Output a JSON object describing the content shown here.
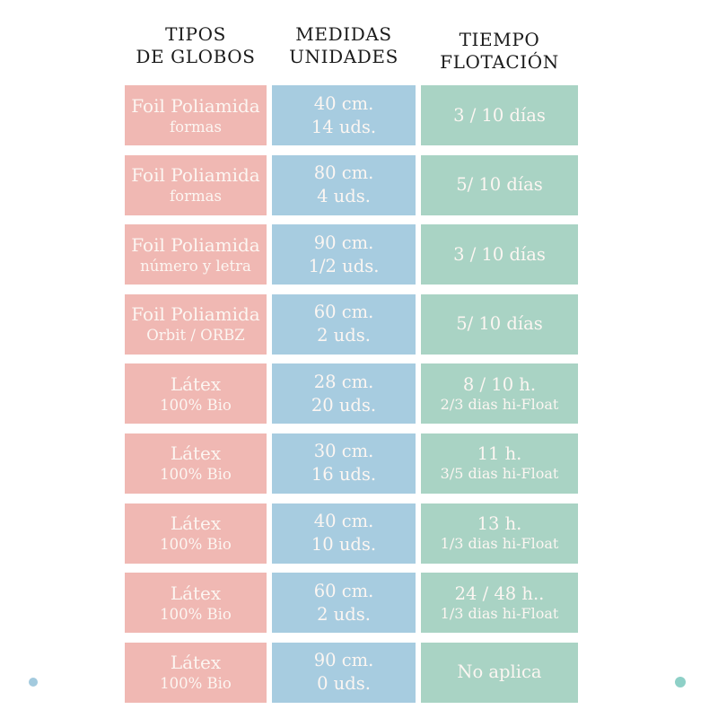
{
  "headers": {
    "tipos": [
      "TIPOS",
      "DE GLOBOS"
    ],
    "medidas": [
      "MEDIDAS",
      "UNIDADES"
    ],
    "tiempo": [
      "TIEMPO",
      "FLOTACIÓN"
    ]
  },
  "table": {
    "rows": [
      {
        "tipo": [
          "Foil Poliamida",
          "formas"
        ],
        "medidas": [
          "40 cm.",
          "14 uds."
        ],
        "tiempo": [
          "3 / 10 días"
        ]
      },
      {
        "tipo": [
          "Foil Poliamida",
          "formas"
        ],
        "medidas": [
          "80 cm.",
          "4 uds."
        ],
        "tiempo": [
          "5/ 10 días"
        ]
      },
      {
        "tipo": [
          "Foil Poliamida",
          "número y letra"
        ],
        "medidas": [
          "90 cm.",
          "1/2 uds."
        ],
        "tiempo": [
          "3 / 10 días"
        ]
      },
      {
        "tipo": [
          "Foil Poliamida",
          "Orbit / ORBZ"
        ],
        "medidas": [
          "60 cm.",
          "2 uds."
        ],
        "tiempo": [
          "5/ 10 días"
        ]
      },
      {
        "tipo": [
          "Látex",
          "100% Bio"
        ],
        "medidas": [
          "28 cm.",
          "20 uds."
        ],
        "tiempo": [
          "8 / 10 h.",
          "2/3 dias hi-Float"
        ]
      },
      {
        "tipo": [
          "Látex",
          "100% Bio"
        ],
        "medidas": [
          "30 cm.",
          "16 uds."
        ],
        "tiempo": [
          "11 h.",
          "3/5 dias hi-Float"
        ]
      },
      {
        "tipo": [
          "Látex",
          "100% Bio"
        ],
        "medidas": [
          "40 cm.",
          "10 uds."
        ],
        "tiempo": [
          "13 h.",
          "1/3 dias hi-Float"
        ]
      },
      {
        "tipo": [
          "Látex",
          "100% Bio"
        ],
        "medidas": [
          "60 cm.",
          "2 uds."
        ],
        "tiempo": [
          "24 / 48 h..",
          "1/3 dias hi-Float"
        ]
      },
      {
        "tipo": [
          "Látex",
          "100% Bio"
        ],
        "medidas": [
          "90 cm.",
          "0 uds."
        ],
        "tiempo": [
          "No aplica"
        ]
      }
    ]
  },
  "chart_data": {
    "type": "table",
    "columns": [
      "TIPOS DE GLOBOS",
      "MEDIDAS UNIDADES",
      "TIEMPO FLOTACIÓN"
    ],
    "rows": [
      [
        "Foil Poliamida formas",
        "40 cm. 14 uds.",
        "3 / 10 días"
      ],
      [
        "Foil Poliamida formas",
        "80 cm. 4 uds.",
        "5/ 10 días"
      ],
      [
        "Foil Poliamida número y letra",
        "90 cm. 1/2 uds.",
        "3 / 10 días"
      ],
      [
        "Foil Poliamida Orbit / ORBZ",
        "60 cm. 2 uds.",
        "5/ 10 días"
      ],
      [
        "Látex 100% Bio",
        "28 cm. 20 uds.",
        "8 / 10 h. 2/3 dias hi-Float"
      ],
      [
        "Látex 100% Bio",
        "30 cm. 16 uds.",
        "11 h. 3/5 dias hi-Float"
      ],
      [
        "Látex 100% Bio",
        "40 cm. 10 uds.",
        "13 h. 1/3 dias hi-Float"
      ],
      [
        "Látex 100% Bio",
        "60 cm. 2 uds.",
        "24 / 48 h.. 1/3 dias hi-Float"
      ],
      [
        "Látex 100% Bio",
        "90 cm. 0 uds.",
        "No aplica"
      ]
    ]
  },
  "colors": {
    "tipo_cell": "#f0b8b3",
    "medidas_cell": "#a7cce0",
    "tiempo_cell": "#a9d3c4",
    "cell_text": "#fcf6f2",
    "header_text": "#1b1b1b",
    "dot_left": "#a3cade",
    "dot_right": "#8ed0c7"
  }
}
